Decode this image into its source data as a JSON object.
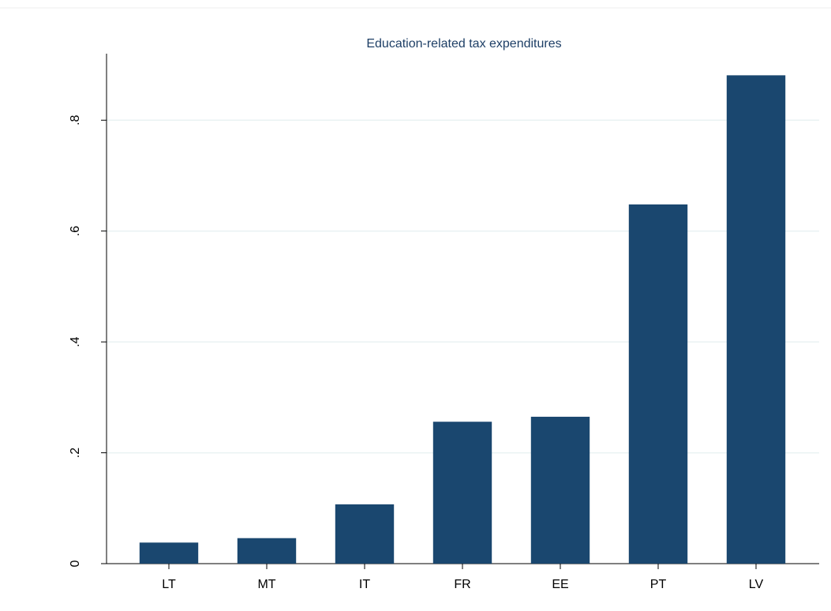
{
  "chart_data": {
    "type": "bar",
    "title": "Education-related tax expenditures",
    "categories": [
      "LT",
      "MT",
      "IT",
      "FR",
      "EE",
      "PT",
      "LV"
    ],
    "values": [
      0.038,
      0.046,
      0.107,
      0.256,
      0.265,
      0.648,
      0.881
    ],
    "color": "#1a476f",
    "ylim": [
      0,
      0.92
    ],
    "yticks": [
      0,
      {
        "value": 0.2,
        "label": ".2"
      },
      {
        "value": 0.4,
        "label": ".4"
      },
      {
        "value": 0.6,
        "label": ".6"
      },
      {
        "value": 0.8,
        "label": ".8"
      }
    ],
    "grid": true
  }
}
